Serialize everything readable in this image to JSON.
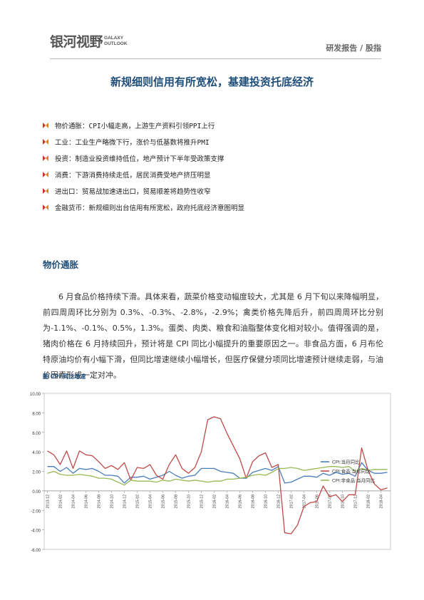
{
  "header": {
    "logo_cn": "银河视野",
    "logo_en": "GALAXY OUTLOOK",
    "report_type": "研发报告 / 股指"
  },
  "title": "新规细则信用有所宽松，基建投资托底经济",
  "bullets": [
    {
      "label": "物价通胀",
      "text": "CPI小幅走高，上游生产资料引领PPI上行"
    },
    {
      "label": "工业",
      "text": "工业生产略微下行，涨价与低基数将推升PMI"
    },
    {
      "label": "投资",
      "text": "制造业投资维持低位，地产预计下半年受政策支撑"
    },
    {
      "label": "消费",
      "text": "下游消费持续走低，居民消费受地产挤压明显"
    },
    {
      "label": "进出口",
      "text": "贸易战加速进出口，贸易顺差将趋势性收窄"
    },
    {
      "label": "金融货币",
      "text": "新规细则出台信用有所宽松，政府托底经济意图明显"
    }
  ],
  "section_title": "物价通胀",
  "paragraph": "6 月食品价格持续下滑。具体来看，蔬菜价格变动幅度较大，尤其是 6 月下旬以来降幅明显，前四周周环比分别为 0.3%、-0.3%、-2.8%，-2.9%；禽类价格先降后升，前四周周环比分别为-1.1%、-0.1%、0.5%，1.3%。蛋类、肉类、粮食和油脂整体变化相对较小。值得强调的是，猪肉价格在 6 月持续回升，预计将是 CPI 同比小幅提升的重要原因之一。非食品方面，6 月布伦特原油均价有小幅下滑，但同比增速继续小幅增长，但医疗保健分项同比增速预计继续走弱，与油价因素形成一定对冲。",
  "figure_title": "图  CPI 同比增速",
  "colors": {
    "cpi": "#4a7ebb",
    "food": "#be4b48",
    "nonfood": "#98b954",
    "accent": "#1f4e79"
  },
  "chart_data": {
    "type": "line",
    "title": "",
    "ylim": [
      -6,
      10
    ],
    "yticks": [
      "10.00",
      "8.00",
      "6.00",
      "4.00",
      "2.00",
      "0.00",
      "-2.00",
      "-4.00",
      "-6.00"
    ],
    "xtick_labels": [
      "2013-12",
      "2014-02",
      "2014-04",
      "2014-06",
      "2014-08",
      "2014-10",
      "2014-12",
      "2015-02",
      "2015-04",
      "2015-06",
      "2015-08",
      "2015-10",
      "2015-12",
      "2016-02",
      "2016-04",
      "2016-06",
      "2016-08",
      "2016-10",
      "2016-12",
      "2017-02",
      "2017-04",
      "2017-06",
      "2017-08",
      "2017-10",
      "2017-12",
      "2018-02",
      "2018-04"
    ],
    "legend_position": "right",
    "series": [
      {
        "name": "CPI:当月同比",
        "color": "#4a7ebb",
        "values": [
          2.5,
          2.5,
          2.0,
          2.4,
          1.8,
          2.3,
          2.2,
          2.3,
          2.0,
          1.6,
          1.6,
          1.5,
          0.8,
          1.4,
          1.4,
          1.5,
          1.2,
          1.4,
          1.6,
          2.0,
          1.6,
          1.3,
          1.5,
          1.6,
          2.3,
          2.3,
          2.3,
          2.0,
          1.9,
          1.8,
          1.3,
          1.3,
          1.9,
          2.1,
          2.3,
          2.1,
          2.5,
          0.8,
          0.9,
          1.2,
          1.5,
          1.5,
          1.4,
          1.8,
          1.6,
          1.9,
          1.7,
          1.8,
          1.5,
          2.9,
          2.1,
          1.8,
          1.8,
          1.9
        ]
      },
      {
        "name": "CPI:食品:当月同比",
        "color": "#be4b48",
        "values": [
          4.1,
          3.7,
          2.7,
          4.1,
          2.3,
          4.1,
          3.7,
          3.6,
          3.0,
          2.3,
          2.6,
          2.2,
          2.9,
          1.1,
          2.4,
          2.3,
          2.7,
          1.6,
          1.2,
          2.7,
          3.7,
          2.3,
          1.8,
          2.4,
          4.0,
          7.3,
          7.6,
          7.4,
          5.9,
          4.6,
          3.3,
          1.3,
          3.0,
          3.6,
          3.9,
          2.4,
          2.7,
          -4.3,
          -4.4,
          -3.5,
          -1.6,
          -1.2,
          -1.1,
          0.5,
          -0.6,
          -0.4,
          -1.1,
          -0.4,
          -0.4,
          4.4,
          2.1,
          0.7,
          0.1,
          0.3
        ]
      },
      {
        "name": "CPI:非食品:当月同比",
        "color": "#98b954",
        "values": [
          1.8,
          2.0,
          1.7,
          1.6,
          1.6,
          1.7,
          1.6,
          1.5,
          1.3,
          1.3,
          1.2,
          0.9,
          0.6,
          1.1,
          1.0,
          1.0,
          1.0,
          0.9,
          1.1,
          1.0,
          1.2,
          1.1,
          1.0,
          1.1,
          1.0,
          0.9,
          1.0,
          1.0,
          1.2,
          1.2,
          1.3,
          1.4,
          1.6,
          1.7,
          1.6,
          1.9,
          2.3,
          2.3,
          2.4,
          2.3,
          2.1,
          2.2,
          2.3,
          2.4,
          2.5,
          2.5,
          2.4,
          2.5,
          2.0,
          2.3,
          2.1,
          2.2,
          2.2,
          2.2
        ]
      }
    ]
  }
}
